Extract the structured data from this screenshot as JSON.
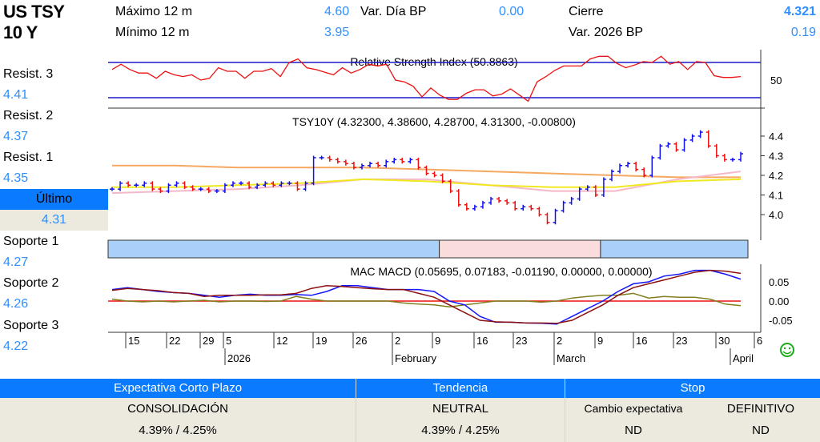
{
  "header": {
    "title_line1": "US TSY",
    "title_line2": "10 Y",
    "max_label": "Máximo 12 m",
    "max_value": "4.60",
    "min_label": "Mínimo 12 m",
    "min_value": "3.95",
    "var_dia_label": "Var. Día BP",
    "var_dia_value": "0.00",
    "cierre_label": "Cierre",
    "cierre_value": "4.321",
    "var_year_label": "Var. 2026 BP",
    "var_year_value": "0.19"
  },
  "levels": {
    "resist3_label": "Resist. 3",
    "resist3_value": "4.41",
    "resist2_label": "Resist. 2",
    "resist2_value": "4.37",
    "resist1_label": "Resist. 1",
    "resist1_value": "4.35",
    "ultimo_label": "Último",
    "ultimo_value": "4.31",
    "soporte1_label": "Soporte 1",
    "soporte1_value": "4.27",
    "soporte2_label": "Soporte 2",
    "soporte2_value": "4.26",
    "soporte3_label": "Soporte 3",
    "soporte3_value": "4.22"
  },
  "chart_data": {
    "type": "line",
    "rsi": {
      "title": "Relative Strength Index (50.8863)",
      "upper": 70,
      "lower": 30,
      "ticks": [
        "50"
      ],
      "values": [
        62,
        68,
        62,
        58,
        58,
        52,
        60,
        56,
        54,
        56,
        50,
        52,
        64,
        60,
        60,
        52,
        60,
        60,
        63,
        54,
        70,
        74,
        64,
        62,
        59,
        56,
        64,
        58,
        62,
        68,
        66,
        68,
        50,
        48,
        43,
        31,
        41,
        33,
        28,
        28,
        35,
        39,
        39,
        32,
        34,
        40,
        33,
        26,
        48,
        54,
        61,
        66,
        66,
        66,
        74,
        77,
        77,
        69,
        64,
        67,
        71,
        70,
        77,
        68,
        71,
        62,
        71,
        70,
        55,
        53,
        53,
        54
      ]
    },
    "price": {
      "title": "TSY10Y (4.32300, 4.38600, 4.28700, 4.31300, -0.00800)",
      "ylim": [
        3.92,
        4.5
      ],
      "ticks": [
        "4.4",
        "4.3",
        "4.2",
        "4.1",
        "4.0"
      ],
      "closes": [
        4.13,
        4.16,
        4.15,
        4.15,
        4.16,
        4.13,
        4.12,
        4.15,
        4.16,
        4.14,
        4.13,
        4.13,
        4.12,
        4.12,
        4.15,
        4.16,
        4.16,
        4.14,
        4.15,
        4.16,
        4.15,
        4.16,
        4.16,
        4.13,
        4.16,
        4.29,
        4.29,
        4.28,
        4.27,
        4.26,
        4.24,
        4.25,
        4.26,
        4.25,
        4.27,
        4.28,
        4.27,
        4.28,
        4.24,
        4.21,
        4.2,
        4.17,
        4.12,
        4.05,
        4.03,
        4.04,
        4.06,
        4.08,
        4.07,
        4.06,
        4.03,
        4.04,
        4.03,
        4.0,
        3.96,
        4.02,
        4.06,
        4.08,
        4.13,
        4.14,
        4.1,
        4.18,
        4.22,
        4.25,
        4.26,
        4.23,
        4.2,
        4.29,
        4.35,
        4.36,
        4.33,
        4.38,
        4.4,
        4.42,
        4.35,
        4.3,
        4.28,
        4.28,
        4.31
      ],
      "ma_long": [
        4.25,
        4.25,
        4.24,
        4.24,
        4.24,
        4.23,
        4.22,
        4.21,
        4.2,
        4.19,
        4.19
      ],
      "ma_mid": [
        4.14,
        4.14,
        4.15,
        4.16,
        4.18,
        4.17,
        4.15,
        4.14,
        4.14,
        4.17,
        4.18
      ],
      "ma_short": [
        4.11,
        4.12,
        4.13,
        4.15,
        4.18,
        4.18,
        4.15,
        4.12,
        4.12,
        4.18,
        4.22
      ],
      "colors": {
        "up": "#1010ee",
        "down": "#ee1010",
        "ma_long": "#f5a860",
        "ma_mid": "#f0e820",
        "ma_short": "#f5b8c8"
      }
    },
    "regimes": [
      {
        "state": "up",
        "from": 0,
        "to": 41
      },
      {
        "state": "down",
        "from": 41,
        "to": 61
      },
      {
        "state": "up",
        "from": 61,
        "to": 79
      }
    ],
    "macd": {
      "title": "MAC MACD (0.05695, 0.07183, -0.01190, 0.00000, 0.00000)",
      "ylim": [
        -0.08,
        0.11
      ],
      "ticks": [
        "0.05",
        "0.00",
        "-0.05"
      ],
      "macd": [
        0.03,
        0.035,
        0.03,
        0.025,
        0.022,
        0.02,
        0.015,
        0.01,
        0.015,
        0.018,
        0.015,
        0.015,
        0.017,
        0.015,
        0.025,
        0.04,
        0.04,
        0.035,
        0.03,
        0.03,
        0.03,
        0.025,
        0.0,
        -0.01,
        -0.04,
        -0.055,
        -0.055,
        -0.057,
        -0.058,
        -0.06,
        -0.04,
        -0.02,
        0.0,
        0.025,
        0.045,
        0.05,
        0.065,
        0.07,
        0.08,
        0.08,
        0.07,
        0.057
      ],
      "signal": [
        0.028,
        0.033,
        0.03,
        0.027,
        0.022,
        0.02,
        0.012,
        0.015,
        0.015,
        0.015,
        0.016,
        0.016,
        0.02,
        0.033,
        0.04,
        0.038,
        0.035,
        0.032,
        0.03,
        0.03,
        0.02,
        0.01,
        -0.01,
        -0.03,
        -0.05,
        -0.054,
        -0.055,
        -0.057,
        -0.057,
        -0.058,
        -0.05,
        -0.03,
        -0.01,
        0.015,
        0.035,
        0.045,
        0.055,
        0.065,
        0.075,
        0.08,
        0.078,
        0.072
      ],
      "hist": [
        0.005,
        0.0,
        -0.002,
        0.0,
        -0.002,
        0.0,
        0.002,
        -0.002,
        0.0,
        0.0,
        -0.001,
        0.0,
        0.012,
        0.005,
        0.0,
        0.0,
        0.0,
        0.0,
        0.0,
        -0.005,
        -0.008,
        -0.01,
        -0.015,
        -0.01,
        -0.005,
        0.0,
        0.0,
        0.0,
        -0.003,
        0.0,
        0.008,
        0.012,
        0.015,
        0.015,
        0.02,
        0.008,
        0.012,
        0.01,
        0.01,
        0.005,
        -0.008,
        -0.012
      ],
      "colors": {
        "macd": "#1515ff",
        "signal": "#8b1010",
        "hist": "#808020",
        "zero": "#ee1010"
      }
    },
    "x_ticks": [
      "15",
      "22",
      "29",
      "5",
      "12",
      "19",
      "26",
      "2",
      "9",
      "16",
      "23",
      "2",
      "9",
      "16",
      "23",
      "30",
      "6"
    ],
    "months": [
      "2026",
      "February",
      "March",
      "April"
    ]
  },
  "table": {
    "col1_header": "Expectativa Corto Plazo",
    "col2_header": "Tendencia",
    "col3_header": "Stop",
    "col1_row1": "CONSOLIDACIÓN",
    "col1_row2": "4.39% / 4.25%",
    "col2_row1": "NEUTRAL",
    "col2_row2": "4.39% / 4.25%",
    "col3a_row1": "Cambio expectativa",
    "col3b_row1": "DEFINITIVO",
    "col3a_row2": "ND",
    "col3b_row2": "ND"
  },
  "icons": {
    "status": "smiley-icon"
  }
}
